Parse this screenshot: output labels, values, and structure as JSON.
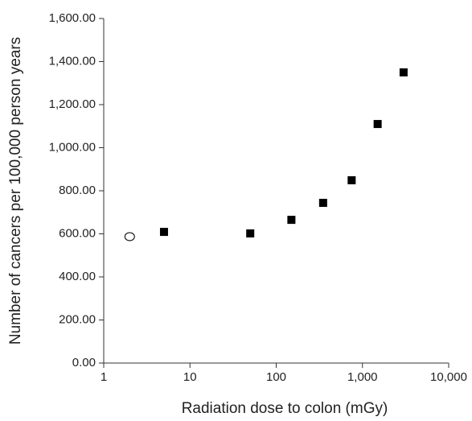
{
  "chart_data": {
    "type": "scatter",
    "x_label": "Radiation dose to colon (mGy)",
    "y_label": "Number of cancers per 100,000 person years",
    "x_scale": "log",
    "series": [
      {
        "marker": "open-circle",
        "color": "#000000",
        "x": [
          2
        ],
        "values": [
          587
        ]
      },
      {
        "marker": "square",
        "color": "#000000",
        "x": [
          5,
          50,
          150,
          350,
          750,
          1500,
          3000
        ],
        "values": [
          609,
          602,
          665,
          744,
          849,
          1110,
          1350
        ]
      }
    ],
    "xlim": [
      1,
      10000
    ],
    "xticks": [
      1,
      10,
      100,
      {
        "value": 1000,
        "label": "1,000"
      },
      {
        "value": 10000,
        "label": "10,000"
      }
    ],
    "ylim": [
      0,
      1600
    ],
    "yticks": [
      {
        "value": 0,
        "label": "0.00"
      },
      {
        "value": 200,
        "label": "200.00"
      },
      {
        "value": 400,
        "label": "400.00"
      },
      {
        "value": 600,
        "label": "600.00"
      },
      {
        "value": 800,
        "label": "800.00"
      },
      {
        "value": 1000,
        "label": "1,000.00"
      },
      {
        "value": 1200,
        "label": "1,200.00"
      },
      {
        "value": 1400,
        "label": "1,400.00"
      },
      {
        "value": 1600,
        "label": "1,600.00"
      }
    ]
  }
}
